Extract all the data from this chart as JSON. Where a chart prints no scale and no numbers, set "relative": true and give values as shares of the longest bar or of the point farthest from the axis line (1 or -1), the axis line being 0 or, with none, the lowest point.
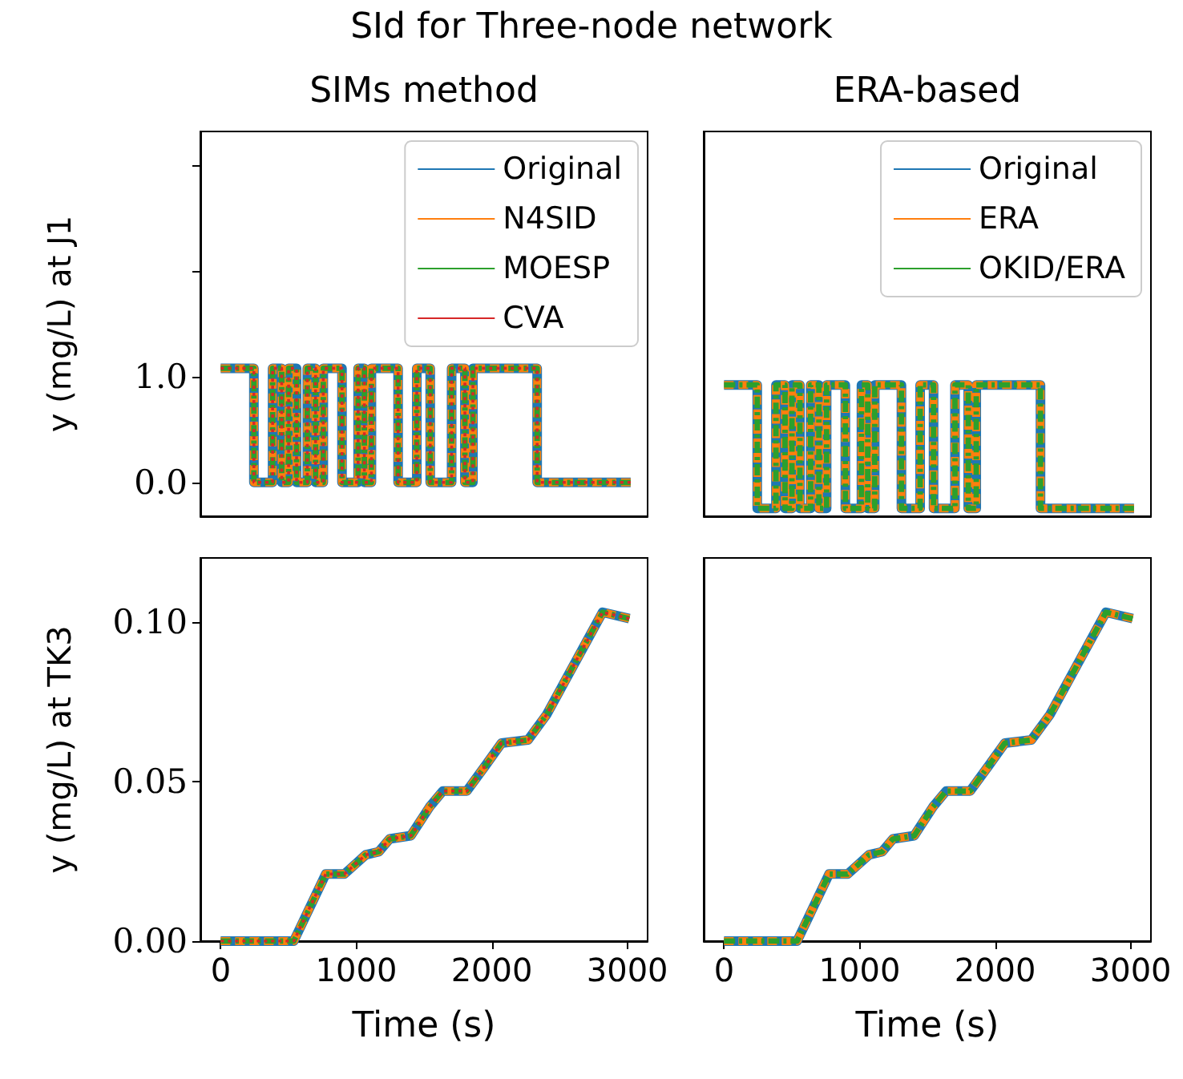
{
  "chart_data": [
    {
      "type": "step",
      "title": "SIMs method",
      "annotations": [
        "SId for Three-node network"
      ],
      "ylabel": "y (mg/L) at J1",
      "xlim": [
        -150,
        3150
      ],
      "ylim": [
        -0.32,
        3.32
      ],
      "yticks": [
        {
          "value": 0,
          "label": "0.0"
        },
        {
          "value": 1,
          "label": "1.0"
        },
        {
          "value": 2,
          "label": null
        },
        {
          "value": 3,
          "label": null
        }
      ],
      "tick_labels": "y",
      "legend": "top right",
      "grid": false,
      "marker": "none",
      "x": [
        0,
        245,
        383,
        450,
        501,
        560,
        639,
        700,
        757,
        895,
        1014,
        1060,
        1112,
        1309,
        1447,
        1546,
        1704,
        1802,
        1861,
        2335,
        3025
      ],
      "series": [
        {
          "name": "Original",
          "color": "#1f77b4",
          "line_style": "solid",
          "values": [
            1.08,
            0,
            1.08,
            0,
            1.08,
            0,
            1.08,
            0,
            1.08,
            0,
            1.08,
            0,
            1.08,
            0,
            1.08,
            0,
            1.08,
            0,
            1.08,
            0,
            0
          ]
        },
        {
          "name": "N4SID",
          "color": "#ff7f0e",
          "line_style": "dashed",
          "values": [
            1.08,
            0,
            1.08,
            0,
            1.08,
            0,
            1.08,
            0,
            1.08,
            0,
            1.08,
            0,
            1.08,
            0,
            1.08,
            0,
            1.08,
            0,
            1.08,
            0,
            0
          ]
        },
        {
          "name": "MOESP",
          "color": "#2ca02c",
          "line_style": "dashdot",
          "values": [
            1.08,
            0,
            1.08,
            0,
            1.08,
            0,
            1.08,
            0,
            1.08,
            0,
            1.08,
            0,
            1.08,
            0,
            1.08,
            0,
            1.08,
            0,
            1.08,
            0,
            0
          ]
        },
        {
          "name": "CVA",
          "color": "#d62728",
          "line_style": "dotted",
          "values": [
            1.08,
            0,
            1.08,
            0,
            1.08,
            0,
            1.08,
            0,
            1.08,
            0,
            1.08,
            0,
            1.08,
            0,
            1.08,
            0,
            1.08,
            0,
            1.08,
            0,
            0
          ]
        }
      ]
    },
    {
      "type": "step",
      "title": "ERA-based",
      "relative": true,
      "xlim": [
        -150,
        3150
      ],
      "tick_labels": false,
      "legend": "top right",
      "grid": false,
      "marker": "none",
      "x": [
        0,
        245,
        383,
        450,
        501,
        560,
        639,
        700,
        757,
        895,
        1014,
        1060,
        1112,
        1309,
        1447,
        1546,
        1704,
        1802,
        1861,
        2335,
        3025
      ],
      "series": [
        {
          "name": "Original",
          "color": "#1f77b4",
          "line_style": "solid",
          "values": [
            1,
            0.06,
            1,
            0.06,
            1,
            0.06,
            1,
            0.06,
            1,
            0.06,
            1,
            0.06,
            1,
            0.06,
            1,
            0.06,
            1,
            0.06,
            1,
            0.06,
            0.06
          ]
        },
        {
          "name": "ERA",
          "color": "#ff7f0e",
          "line_style": "dashed",
          "values": [
            1,
            0.06,
            1,
            0.06,
            1,
            0.06,
            1,
            0.06,
            1,
            0.06,
            1,
            0.06,
            1,
            0.06,
            1,
            0.06,
            1,
            0.06,
            1,
            0.06,
            0.06
          ]
        },
        {
          "name": "OKID/ERA",
          "color": "#2ca02c",
          "line_style": "dashdot",
          "values": [
            1,
            0.06,
            1,
            0.06,
            1,
            0.06,
            1,
            0.06,
            1,
            0.06,
            1,
            0.06,
            1,
            0.06,
            1,
            0.06,
            1,
            0.06,
            1,
            0.06,
            0.06
          ]
        }
      ]
    },
    {
      "type": "line",
      "xlabel": "Time (s)",
      "ylabel": "y (mg/L) at TK3",
      "xlim": [
        -150,
        3150
      ],
      "xticks": [
        0,
        1000,
        2000,
        3000
      ],
      "ylim": [
        0,
        0.12
      ],
      "yticks": [
        {
          "value": 0,
          "label": "0.00"
        },
        {
          "value": 0.05,
          "label": "0.05"
        },
        {
          "value": 0.1,
          "label": "0.10"
        }
      ],
      "grid": false,
      "marker": "none",
      "legend": false,
      "x": [
        0,
        539,
        775,
        912,
        991,
        1069,
        1167,
        1246,
        1403,
        1541,
        1639,
        1816,
        1954,
        2072,
        2268,
        2406,
        2818,
        3015
      ],
      "series": [
        {
          "color": "#1f77b4",
          "line_style": "solid",
          "values": [
            0,
            0,
            0.021,
            0.021,
            0.024,
            0.027,
            0.028,
            0.032,
            0.033,
            0.042,
            0.047,
            0.047,
            0.055,
            0.062,
            0.063,
            0.071,
            0.103,
            0.101
          ]
        },
        {
          "color": "#ff7f0e",
          "line_style": "dashed",
          "values": [
            0,
            0,
            0.021,
            0.021,
            0.024,
            0.027,
            0.028,
            0.032,
            0.033,
            0.042,
            0.047,
            0.047,
            0.055,
            0.062,
            0.063,
            0.071,
            0.103,
            0.101
          ]
        },
        {
          "color": "#2ca02c",
          "line_style": "dashdot",
          "values": [
            0,
            0,
            0.021,
            0.021,
            0.024,
            0.027,
            0.028,
            0.032,
            0.033,
            0.042,
            0.047,
            0.047,
            0.055,
            0.062,
            0.063,
            0.071,
            0.103,
            0.101
          ]
        },
        {
          "color": "#d62728",
          "line_style": "dotted",
          "values": [
            0,
            0,
            0.021,
            0.021,
            0.024,
            0.027,
            0.028,
            0.032,
            0.033,
            0.042,
            0.047,
            0.047,
            0.055,
            0.062,
            0.063,
            0.071,
            0.103,
            0.101
          ]
        }
      ]
    },
    {
      "type": "line",
      "xlabel": "Time (s)",
      "xlim": [
        -150,
        3150
      ],
      "xticks": [
        0,
        1000,
        2000,
        3000
      ],
      "ylim": [
        0,
        0.12
      ],
      "tick_labels": "x",
      "grid": false,
      "marker": "none",
      "legend": false,
      "x": [
        0,
        539,
        775,
        912,
        991,
        1069,
        1167,
        1246,
        1403,
        1541,
        1639,
        1816,
        1954,
        2072,
        2268,
        2406,
        2818,
        3015
      ],
      "series": [
        {
          "color": "#1f77b4",
          "line_style": "solid",
          "values": [
            0,
            0,
            0.021,
            0.021,
            0.024,
            0.027,
            0.028,
            0.032,
            0.033,
            0.042,
            0.047,
            0.047,
            0.055,
            0.062,
            0.063,
            0.071,
            0.103,
            0.101
          ]
        },
        {
          "color": "#ff7f0e",
          "line_style": "dashed",
          "values": [
            0,
            0,
            0.021,
            0.021,
            0.024,
            0.027,
            0.028,
            0.032,
            0.033,
            0.042,
            0.047,
            0.047,
            0.055,
            0.062,
            0.063,
            0.071,
            0.103,
            0.101
          ]
        },
        {
          "color": "#2ca02c",
          "line_style": "dashdot",
          "values": [
            0,
            0,
            0.021,
            0.021,
            0.024,
            0.027,
            0.028,
            0.032,
            0.033,
            0.042,
            0.047,
            0.047,
            0.055,
            0.062,
            0.063,
            0.071,
            0.103,
            0.101
          ]
        }
      ]
    }
  ]
}
